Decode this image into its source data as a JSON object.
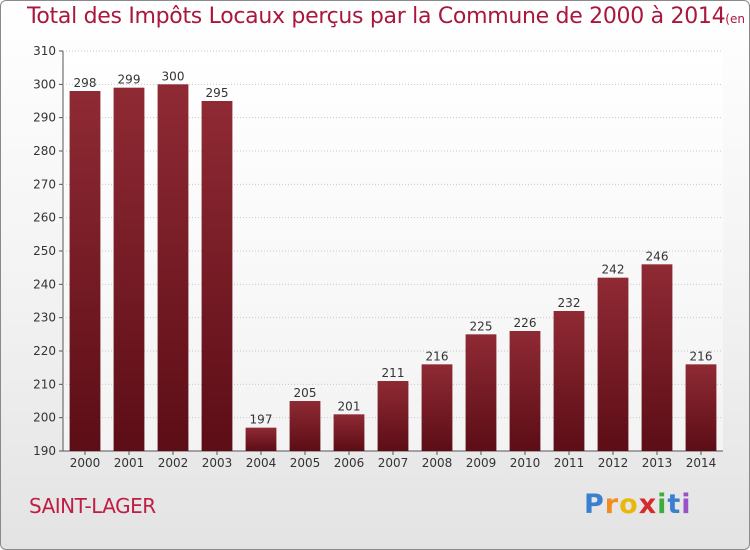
{
  "header": {
    "title": "Total des Impôts Locaux perçus par la Commune de 2000 à 2014",
    "unit": "(en milliers d'€)"
  },
  "commune": "SAINT-LAGER",
  "brand": {
    "text": "Proxiti",
    "letter_colors": [
      "#3b7fd1",
      "#f28c1e",
      "#e8b90c",
      "#d42a2a",
      "#3cae3c",
      "#3b7fd1",
      "#9a50c8"
    ]
  },
  "chart_data": {
    "type": "bar",
    "title": "Total des Impôts Locaux perçus par la Commune de 2000 à 2014",
    "xlabel": "",
    "ylabel": "",
    "categories": [
      "2000",
      "2001",
      "2002",
      "2003",
      "2004",
      "2005",
      "2006",
      "2007",
      "2008",
      "2009",
      "2010",
      "2011",
      "2012",
      "2013",
      "2014"
    ],
    "values": [
      298,
      299,
      300,
      295,
      197,
      205,
      201,
      211,
      216,
      225,
      226,
      232,
      242,
      246,
      216
    ],
    "ylim": [
      190,
      310
    ],
    "yticks": [
      190,
      200,
      210,
      220,
      230,
      240,
      250,
      260,
      270,
      280,
      290,
      300,
      310
    ],
    "grid": true,
    "bar_color": "#7a1a24",
    "data_labels": true
  }
}
